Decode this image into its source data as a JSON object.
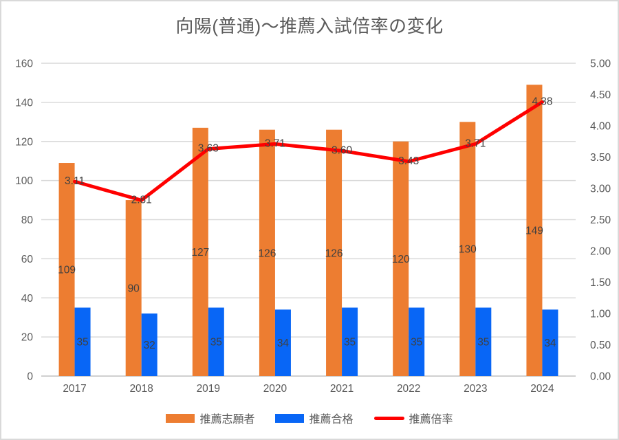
{
  "chart_data": {
    "type": "combo",
    "title": "向陽(普通)〜推薦入試倍率の変化",
    "categories": [
      "2017",
      "2018",
      "2019",
      "2020",
      "2021",
      "2022",
      "2023",
      "2024"
    ],
    "series": [
      {
        "name": "推薦志願者",
        "type": "bar",
        "axis": "left",
        "color": "#ED7D31",
        "values": [
          109,
          90,
          127,
          126,
          126,
          120,
          130,
          149
        ],
        "labels": [
          "109",
          "90",
          "127",
          "126",
          "126",
          "120",
          "130",
          "149"
        ]
      },
      {
        "name": "推薦合格",
        "type": "bar",
        "axis": "left",
        "color": "#0866F6",
        "values": [
          35,
          32,
          35,
          34,
          35,
          35,
          35,
          34
        ],
        "labels": [
          "35",
          "32",
          "35",
          "34",
          "35",
          "35",
          "35",
          "34"
        ]
      },
      {
        "name": "推薦倍率",
        "type": "line",
        "axis": "right",
        "color": "#FF0000",
        "values": [
          3.11,
          2.81,
          3.63,
          3.71,
          3.6,
          3.43,
          3.71,
          4.38
        ],
        "labels": [
          "3.11",
          "2.81",
          "3.63",
          "3.71",
          "3.60",
          "3.43",
          "3.71",
          "4.38"
        ]
      }
    ],
    "left_axis": {
      "min": 0,
      "max": 160,
      "step": 20,
      "tick_labels": [
        "0",
        "20",
        "40",
        "60",
        "80",
        "100",
        "120",
        "140",
        "160"
      ]
    },
    "right_axis": {
      "min": 0,
      "max": 5,
      "step": 0.5,
      "tick_labels": [
        "0.00",
        "0.50",
        "1.00",
        "1.50",
        "2.00",
        "2.50",
        "3.00",
        "3.50",
        "4.00",
        "4.50",
        "5.00"
      ]
    },
    "legend_position": "bottom",
    "grid": true,
    "styles": {
      "grid_color": "#D9D9D9",
      "axis_line_color": "#C0C0C0",
      "tick_text_color": "#595959",
      "data_label_color": "#404040",
      "background": "#FFFFFF",
      "border_color": "#D9D9D9"
    }
  }
}
